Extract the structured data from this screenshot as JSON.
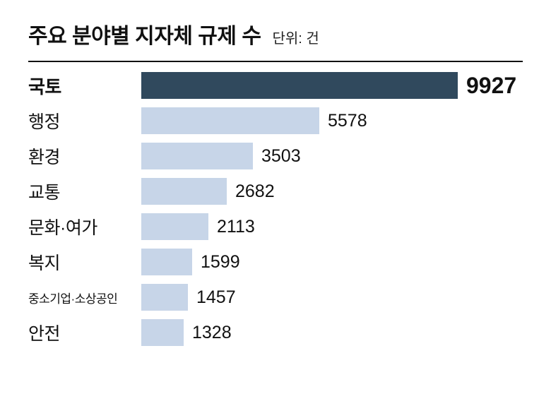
{
  "header": {
    "title": "주요 분야별 지자체 규제 수",
    "unit_label": "단위: 건"
  },
  "colors": {
    "highlight_bar": "#30495d",
    "default_bar": "#c7d5e8",
    "text": "#111111"
  },
  "chart_data": {
    "type": "bar",
    "orientation": "horizontal",
    "title": "주요 분야별 지자체 규제 수",
    "unit_label": "단위: 건",
    "categories": [
      "국토",
      "행정",
      "환경",
      "교통",
      "문화·여가",
      "복지",
      "중소기업·소상공인",
      "안전"
    ],
    "values": [
      9927,
      5578,
      3503,
      2682,
      2113,
      1599,
      1457,
      1328
    ],
    "xlim": [
      0,
      9927
    ],
    "highlight_index": 0,
    "grid": false,
    "legend": false,
    "value_labels": "outside-end"
  }
}
